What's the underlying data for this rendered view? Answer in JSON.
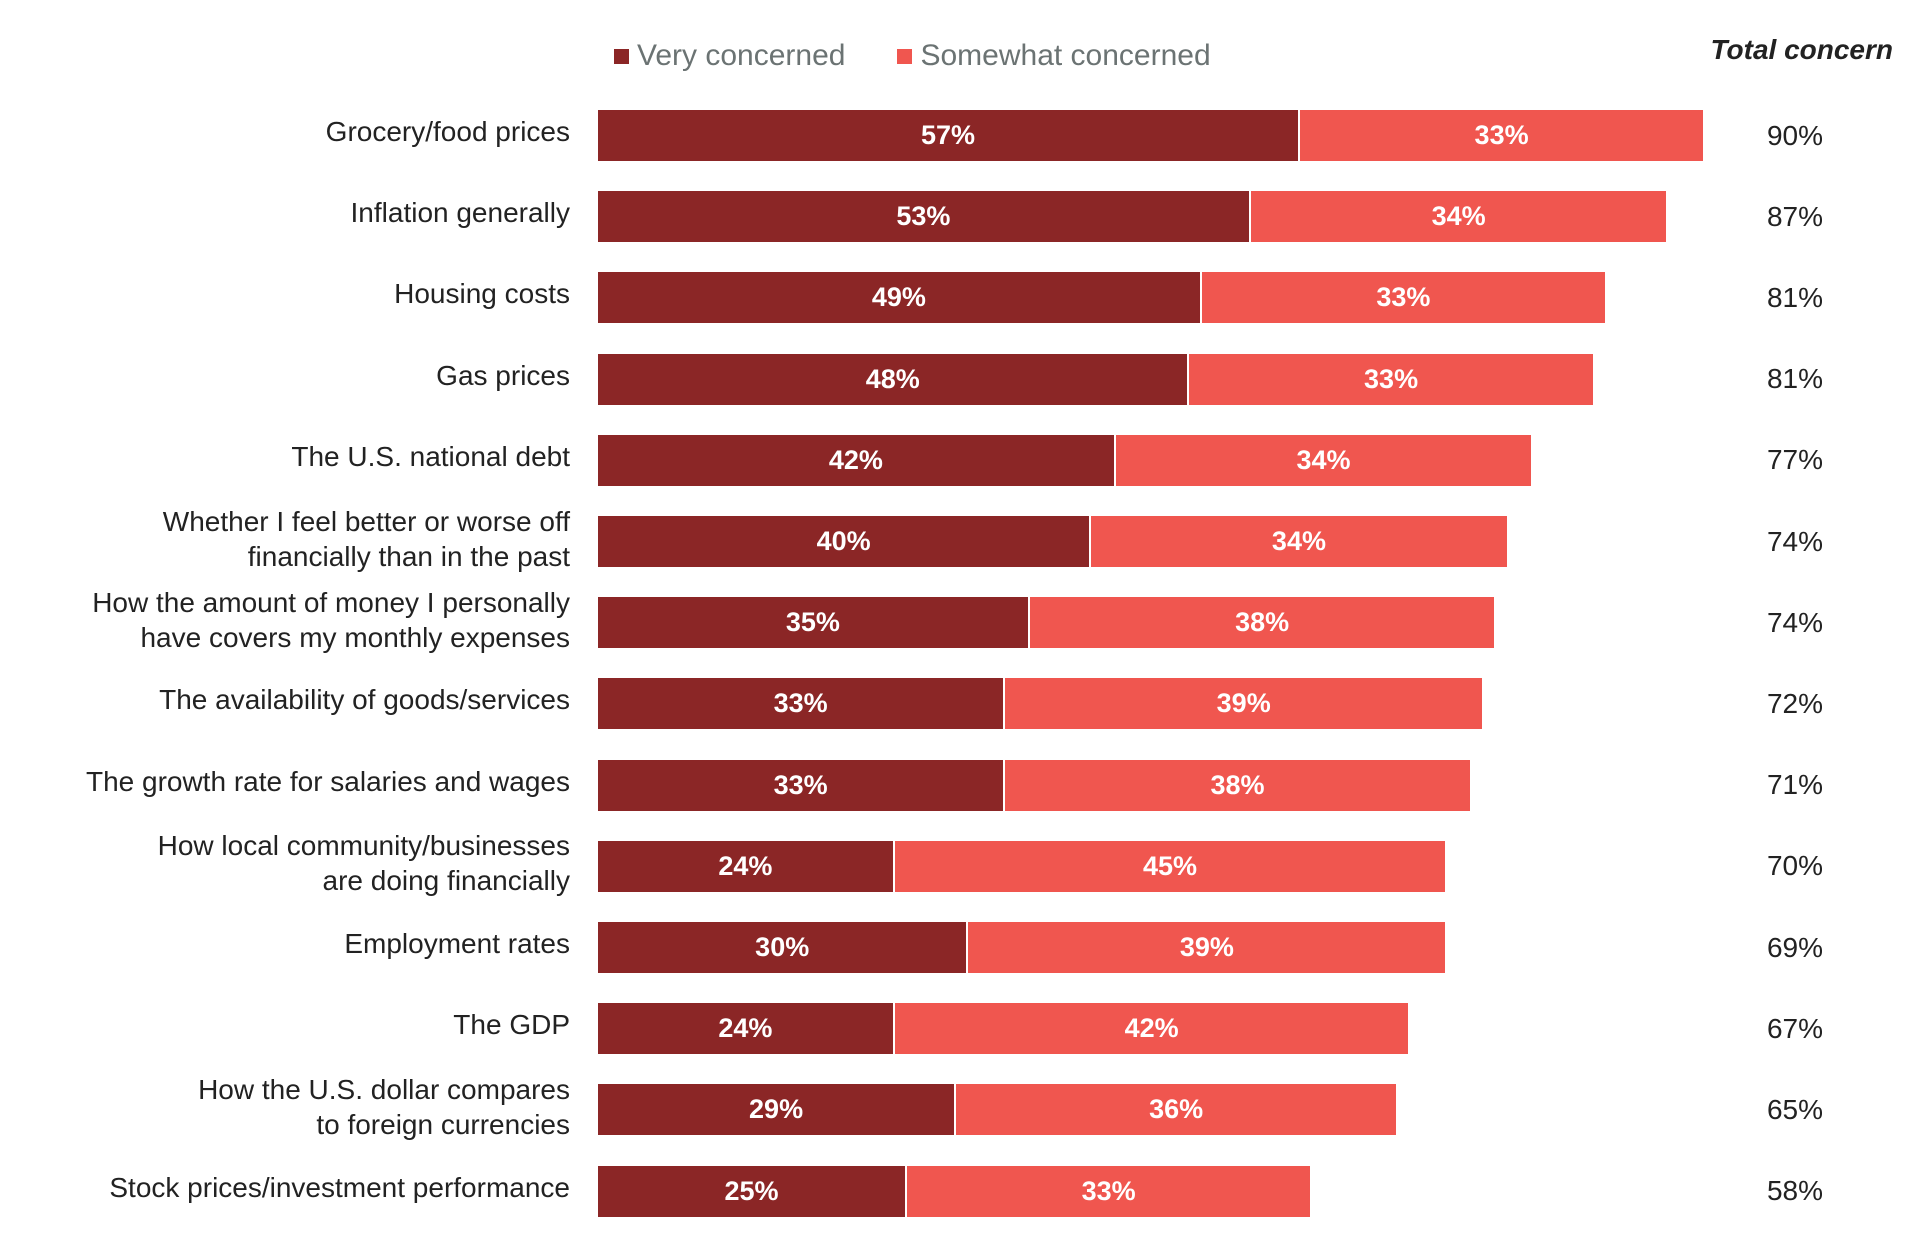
{
  "chart_data": {
    "type": "bar",
    "orientation": "horizontal",
    "stacked": true,
    "title": "",
    "xlabel": "",
    "ylabel": "",
    "xlim": [
      0,
      100
    ],
    "grid": false,
    "legend_position": "top",
    "total_column_header": "Total concern",
    "categories": [
      "Grocery/food prices",
      "Inflation generally",
      "Housing costs",
      "Gas prices",
      "The U.S. national debt",
      "Whether I feel better or worse off financially than in the past",
      "How the amount of money I personally have covers my monthly expenses",
      "The availability of goods/services",
      "The growth rate for salaries and wages",
      "How local community/businesses are doing financially",
      "Employment rates",
      "The GDP",
      "How the U.S. dollar compares to foreign currencies",
      "Stock prices/investment performance"
    ],
    "category_lines": [
      [
        "Grocery/food prices"
      ],
      [
        "Inflation generally"
      ],
      [
        "Housing costs"
      ],
      [
        "Gas prices"
      ],
      [
        "The U.S. national debt"
      ],
      [
        "Whether I feel better or worse off",
        "financially than in the past"
      ],
      [
        "How the amount of money I personally",
        "have covers my monthly expenses"
      ],
      [
        "The availability of goods/services"
      ],
      [
        "The growth rate for salaries and wages"
      ],
      [
        "How local community/businesses",
        "are doing financially"
      ],
      [
        "Employment rates"
      ],
      [
        "The GDP"
      ],
      [
        "How the U.S. dollar compares",
        "to foreign currencies"
      ],
      [
        "Stock prices/investment performance"
      ]
    ],
    "series": [
      {
        "name": "Very concerned",
        "color": "#8b2626",
        "values": [
          57,
          53,
          49,
          48,
          42,
          40,
          35,
          33,
          33,
          24,
          30,
          24,
          29,
          25
        ]
      },
      {
        "name": "Somewhat concerned",
        "color": "#f0564f",
        "values": [
          33,
          34,
          33,
          33,
          34,
          34,
          38,
          39,
          38,
          45,
          39,
          42,
          36,
          33
        ]
      }
    ],
    "totals": [
      90,
      87,
      81,
      81,
      77,
      74,
      74,
      72,
      71,
      70,
      69,
      67,
      65,
      58
    ],
    "value_suffix": "%"
  }
}
